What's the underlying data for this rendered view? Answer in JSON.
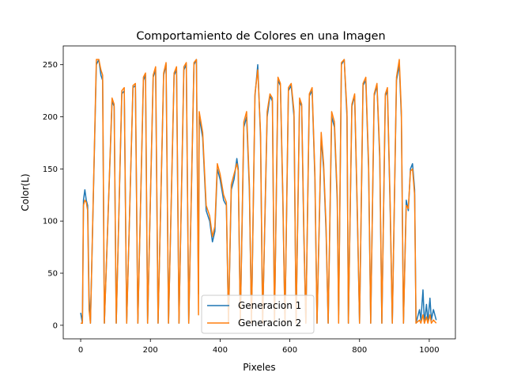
{
  "chart_data": {
    "type": "line",
    "title": "Comportamiento de Colores en una Imagen",
    "xlabel": "Pixeles",
    "ylabel": "Color(L)",
    "xlim": [
      -50,
      1075
    ],
    "ylim": [
      -13,
      268
    ],
    "xticks": [
      0,
      200,
      400,
      600,
      800,
      1000
    ],
    "yticks": [
      0,
      50,
      100,
      150,
      200,
      250
    ],
    "grid": false,
    "legend": {
      "placement": "lower center"
    },
    "series": [
      {
        "name": "Generacion 1",
        "color": "#1f77b4",
        "keypoints": [
          [
            0,
            12
          ],
          [
            5,
            2
          ],
          [
            8,
            120
          ],
          [
            12,
            130
          ],
          [
            16,
            120
          ],
          [
            20,
            115
          ],
          [
            24,
            28
          ],
          [
            28,
            2
          ],
          [
            45,
            250
          ],
          [
            52,
            255
          ],
          [
            58,
            240
          ],
          [
            63,
            235
          ],
          [
            68,
            2
          ],
          [
            90,
            215
          ],
          [
            96,
            210
          ],
          [
            102,
            2
          ],
          [
            118,
            222
          ],
          [
            125,
            225
          ],
          [
            132,
            2
          ],
          [
            150,
            228
          ],
          [
            157,
            230
          ],
          [
            164,
            2
          ],
          [
            180,
            235
          ],
          [
            186,
            240
          ],
          [
            192,
            2
          ],
          [
            208,
            238
          ],
          [
            215,
            245
          ],
          [
            222,
            2
          ],
          [
            238,
            240
          ],
          [
            245,
            250
          ],
          [
            252,
            2
          ],
          [
            268,
            240
          ],
          [
            275,
            245
          ],
          [
            282,
            2
          ],
          [
            296,
            245
          ],
          [
            303,
            250
          ],
          [
            310,
            2
          ],
          [
            325,
            250
          ],
          [
            332,
            255
          ],
          [
            338,
            30
          ],
          [
            340,
            200
          ],
          [
            350,
            180
          ],
          [
            360,
            110
          ],
          [
            370,
            100
          ],
          [
            378,
            80
          ],
          [
            385,
            90
          ],
          [
            392,
            150
          ],
          [
            400,
            140
          ],
          [
            410,
            120
          ],
          [
            418,
            115
          ],
          [
            424,
            2
          ],
          [
            432,
            130
          ],
          [
            440,
            140
          ],
          [
            448,
            160
          ],
          [
            452,
            150
          ],
          [
            458,
            2
          ],
          [
            468,
            190
          ],
          [
            476,
            200
          ],
          [
            484,
            130
          ],
          [
            490,
            2
          ],
          [
            500,
            220
          ],
          [
            508,
            250
          ],
          [
            516,
            180
          ],
          [
            522,
            2
          ],
          [
            535,
            200
          ],
          [
            543,
            220
          ],
          [
            550,
            215
          ],
          [
            556,
            2
          ],
          [
            566,
            235
          ],
          [
            573,
            230
          ],
          [
            580,
            120
          ],
          [
            586,
            2
          ],
          [
            596,
            225
          ],
          [
            604,
            230
          ],
          [
            612,
            200
          ],
          [
            618,
            2
          ],
          [
            628,
            215
          ],
          [
            634,
            210
          ],
          [
            640,
            90
          ],
          [
            646,
            2
          ],
          [
            656,
            220
          ],
          [
            664,
            225
          ],
          [
            672,
            140
          ],
          [
            678,
            2
          ],
          [
            690,
            180
          ],
          [
            697,
            150
          ],
          [
            704,
            90
          ],
          [
            710,
            2
          ],
          [
            720,
            200
          ],
          [
            728,
            190
          ],
          [
            736,
            120
          ],
          [
            740,
            10
          ],
          [
            748,
            250
          ],
          [
            756,
            255
          ],
          [
            764,
            200
          ],
          [
            768,
            2
          ],
          [
            778,
            210
          ],
          [
            786,
            220
          ],
          [
            794,
            100
          ],
          [
            800,
            2
          ],
          [
            810,
            230
          ],
          [
            818,
            235
          ],
          [
            826,
            150
          ],
          [
            832,
            2
          ],
          [
            842,
            220
          ],
          [
            850,
            230
          ],
          [
            858,
            160
          ],
          [
            864,
            2
          ],
          [
            874,
            220
          ],
          [
            880,
            225
          ],
          [
            888,
            110
          ],
          [
            894,
            2
          ],
          [
            906,
            235
          ],
          [
            914,
            250
          ],
          [
            920,
            200
          ],
          [
            926,
            2
          ],
          [
            934,
            120
          ],
          [
            940,
            110
          ],
          [
            946,
            150
          ],
          [
            952,
            155
          ],
          [
            958,
            130
          ],
          [
            962,
            2
          ],
          [
            972,
            15
          ],
          [
            976,
            5
          ],
          [
            982,
            34
          ],
          [
            986,
            2
          ],
          [
            992,
            20
          ],
          [
            996,
            3
          ],
          [
            1002,
            26
          ],
          [
            1006,
            5
          ],
          [
            1012,
            15
          ],
          [
            1020,
            5
          ]
        ]
      },
      {
        "name": "Generacion 2",
        "color": "#ff7f0e",
        "keypoints": [
          [
            0,
            2
          ],
          [
            5,
            2
          ],
          [
            8,
            115
          ],
          [
            12,
            120
          ],
          [
            16,
            118
          ],
          [
            20,
            110
          ],
          [
            24,
            15
          ],
          [
            28,
            2
          ],
          [
            45,
            255
          ],
          [
            52,
            255
          ],
          [
            58,
            245
          ],
          [
            63,
            240
          ],
          [
            68,
            2
          ],
          [
            90,
            218
          ],
          [
            96,
            212
          ],
          [
            102,
            2
          ],
          [
            118,
            225
          ],
          [
            125,
            228
          ],
          [
            132,
            2
          ],
          [
            150,
            230
          ],
          [
            157,
            232
          ],
          [
            164,
            2
          ],
          [
            180,
            238
          ],
          [
            186,
            242
          ],
          [
            192,
            2
          ],
          [
            208,
            240
          ],
          [
            215,
            248
          ],
          [
            222,
            2
          ],
          [
            238,
            242
          ],
          [
            245,
            252
          ],
          [
            252,
            2
          ],
          [
            268,
            242
          ],
          [
            275,
            248
          ],
          [
            282,
            2
          ],
          [
            296,
            248
          ],
          [
            303,
            252
          ],
          [
            310,
            2
          ],
          [
            325,
            252
          ],
          [
            332,
            255
          ],
          [
            338,
            10
          ],
          [
            340,
            205
          ],
          [
            350,
            185
          ],
          [
            360,
            115
          ],
          [
            370,
            105
          ],
          [
            378,
            85
          ],
          [
            385,
            95
          ],
          [
            392,
            155
          ],
          [
            400,
            145
          ],
          [
            410,
            125
          ],
          [
            418,
            118
          ],
          [
            424,
            2
          ],
          [
            432,
            135
          ],
          [
            440,
            145
          ],
          [
            448,
            155
          ],
          [
            452,
            148
          ],
          [
            458,
            2
          ],
          [
            468,
            195
          ],
          [
            476,
            205
          ],
          [
            484,
            135
          ],
          [
            490,
            2
          ],
          [
            500,
            222
          ],
          [
            508,
            245
          ],
          [
            516,
            185
          ],
          [
            522,
            2
          ],
          [
            535,
            205
          ],
          [
            543,
            222
          ],
          [
            550,
            218
          ],
          [
            556,
            2
          ],
          [
            566,
            238
          ],
          [
            573,
            232
          ],
          [
            580,
            125
          ],
          [
            586,
            2
          ],
          [
            596,
            228
          ],
          [
            604,
            232
          ],
          [
            612,
            205
          ],
          [
            618,
            2
          ],
          [
            628,
            218
          ],
          [
            634,
            212
          ],
          [
            640,
            95
          ],
          [
            646,
            2
          ],
          [
            656,
            222
          ],
          [
            664,
            228
          ],
          [
            672,
            145
          ],
          [
            678,
            2
          ],
          [
            690,
            185
          ],
          [
            697,
            155
          ],
          [
            704,
            95
          ],
          [
            710,
            2
          ],
          [
            720,
            205
          ],
          [
            728,
            195
          ],
          [
            736,
            125
          ],
          [
            740,
            2
          ],
          [
            748,
            252
          ],
          [
            756,
            255
          ],
          [
            764,
            205
          ],
          [
            768,
            2
          ],
          [
            778,
            212
          ],
          [
            786,
            222
          ],
          [
            794,
            105
          ],
          [
            800,
            2
          ],
          [
            810,
            232
          ],
          [
            818,
            238
          ],
          [
            826,
            155
          ],
          [
            832,
            2
          ],
          [
            842,
            222
          ],
          [
            850,
            232
          ],
          [
            858,
            165
          ],
          [
            864,
            2
          ],
          [
            874,
            222
          ],
          [
            880,
            228
          ],
          [
            888,
            115
          ],
          [
            894,
            2
          ],
          [
            906,
            238
          ],
          [
            914,
            255
          ],
          [
            920,
            205
          ],
          [
            926,
            2
          ],
          [
            934,
            115
          ],
          [
            940,
            112
          ],
          [
            946,
            148
          ],
          [
            952,
            150
          ],
          [
            958,
            125
          ],
          [
            962,
            2
          ],
          [
            972,
            5
          ],
          [
            976,
            2
          ],
          [
            982,
            10
          ],
          [
            986,
            2
          ],
          [
            992,
            8
          ],
          [
            996,
            2
          ],
          [
            1002,
            10
          ],
          [
            1006,
            2
          ],
          [
            1012,
            5
          ],
          [
            1020,
            2
          ]
        ]
      }
    ]
  }
}
